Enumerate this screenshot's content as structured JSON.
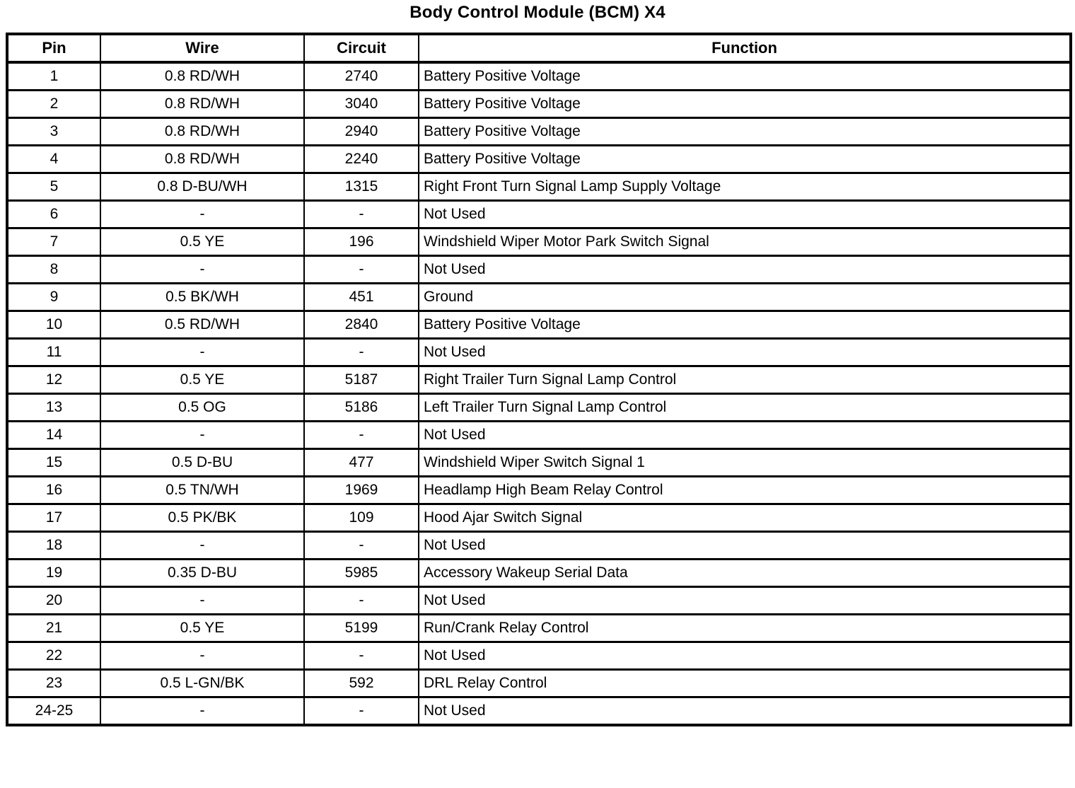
{
  "title": "Body Control Module (BCM) X4",
  "colors": {
    "background": "#ffffff",
    "border": "#000000",
    "text": "#000000"
  },
  "table": {
    "columns": [
      "Pin",
      "Wire",
      "Circuit",
      "Function"
    ],
    "rows": [
      [
        "1",
        "0.8 RD/WH",
        "2740",
        "Battery Positive Voltage"
      ],
      [
        "2",
        "0.8 RD/WH",
        "3040",
        "Battery Positive Voltage"
      ],
      [
        "3",
        "0.8 RD/WH",
        "2940",
        "Battery Positive Voltage"
      ],
      [
        "4",
        "0.8 RD/WH",
        "2240",
        "Battery Positive Voltage"
      ],
      [
        "5",
        "0.8 D-BU/WH",
        "1315",
        "Right Front Turn Signal Lamp Supply Voltage"
      ],
      [
        "6",
        "-",
        "-",
        "Not Used"
      ],
      [
        "7",
        "0.5 YE",
        "196",
        "Windshield Wiper Motor Park Switch Signal"
      ],
      [
        "8",
        "-",
        "-",
        "Not Used"
      ],
      [
        "9",
        "0.5 BK/WH",
        "451",
        "Ground"
      ],
      [
        "10",
        "0.5 RD/WH",
        "2840",
        "Battery Positive Voltage"
      ],
      [
        "11",
        "-",
        "-",
        "Not Used"
      ],
      [
        "12",
        "0.5 YE",
        "5187",
        "Right Trailer Turn Signal Lamp Control"
      ],
      [
        "13",
        "0.5 OG",
        "5186",
        "Left Trailer Turn Signal Lamp Control"
      ],
      [
        "14",
        "-",
        "-",
        "Not Used"
      ],
      [
        "15",
        "0.5 D-BU",
        "477",
        "Windshield Wiper Switch Signal 1"
      ],
      [
        "16",
        "0.5 TN/WH",
        "1969",
        "Headlamp High Beam Relay Control"
      ],
      [
        "17",
        "0.5 PK/BK",
        "109",
        "Hood Ajar Switch Signal"
      ],
      [
        "18",
        "-",
        "-",
        "Not Used"
      ],
      [
        "19",
        "0.35 D-BU",
        "5985",
        "Accessory Wakeup Serial Data"
      ],
      [
        "20",
        "-",
        "-",
        "Not Used"
      ],
      [
        "21",
        "0.5 YE",
        "5199",
        "Run/Crank Relay Control"
      ],
      [
        "22",
        "-",
        "-",
        "Not Used"
      ],
      [
        "23",
        "0.5 L-GN/BK",
        "592",
        "DRL Relay Control"
      ],
      [
        "24-25",
        "-",
        "-",
        "Not Used"
      ]
    ]
  }
}
